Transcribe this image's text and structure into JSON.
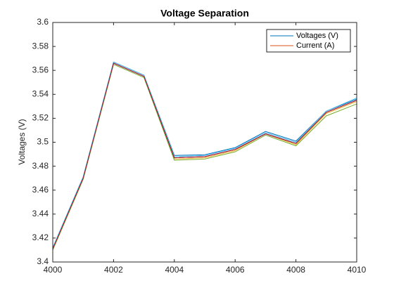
{
  "chart_data": {
    "type": "line",
    "title": "Voltage Separation",
    "ylabel": "Voltages (V)",
    "x": [
      4000,
      4001,
      4002,
      4003,
      4004,
      4005,
      4006,
      4007,
      4008,
      4009,
      4010
    ],
    "xlim": [
      4000,
      4010
    ],
    "xticks": [
      4000,
      4002,
      4004,
      4006,
      4008,
      4010
    ],
    "ylim": [
      3.4,
      3.6
    ],
    "yticks": [
      3.4,
      3.42,
      3.44,
      3.46,
      3.48,
      3.5,
      3.52,
      3.54,
      3.56,
      3.58,
      3.6
    ],
    "legend": "top-right",
    "series": [
      {
        "name": "Voltages (V)",
        "color": "#0072BD",
        "values": [
          3.412,
          3.471,
          3.567,
          3.556,
          3.489,
          3.4895,
          3.4955,
          3.509,
          3.501,
          3.526,
          3.536
        ]
      },
      {
        "name": "Current (A)",
        "color": "#D95319",
        "values": [
          3.411,
          3.47,
          3.566,
          3.555,
          3.487,
          3.488,
          3.494,
          3.507,
          3.499,
          3.525,
          3.535
        ]
      },
      {
        "color": "#EDB120",
        "values": [
          3.411,
          3.47,
          3.566,
          3.555,
          3.486,
          3.487,
          3.493,
          3.507,
          3.498,
          3.524,
          3.534
        ]
      },
      {
        "color": "#7E2F8E",
        "values": [
          3.411,
          3.47,
          3.566,
          3.555,
          3.487,
          3.488,
          3.494,
          3.507,
          3.499,
          3.525,
          3.535
        ]
      },
      {
        "color": "#77AC30",
        "values": [
          3.41,
          3.469,
          3.565,
          3.554,
          3.485,
          3.486,
          3.492,
          3.506,
          3.497,
          3.522,
          3.532
        ]
      },
      {
        "color": "#4DBEEE",
        "values": [
          3.412,
          3.471,
          3.567,
          3.556,
          3.488,
          3.489,
          3.495,
          3.508,
          3.5,
          3.526,
          3.537
        ]
      },
      {
        "color": "#A2142F",
        "values": [
          3.411,
          3.47,
          3.566,
          3.555,
          3.487,
          3.488,
          3.494,
          3.507,
          3.499,
          3.525,
          3.535
        ]
      }
    ]
  }
}
